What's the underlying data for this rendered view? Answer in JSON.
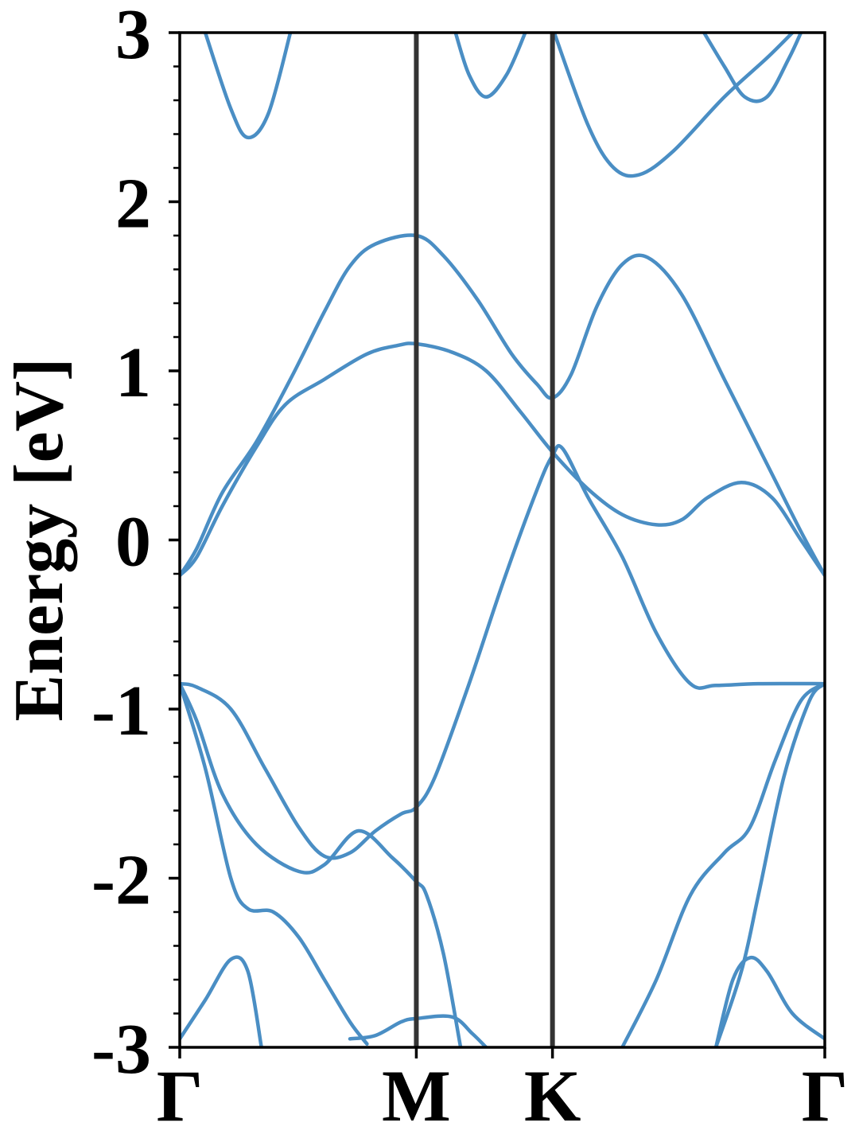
{
  "chart_data": {
    "type": "line",
    "ylabel": "Energy [eV]",
    "xlabel": "",
    "ylim": [
      -3,
      3
    ],
    "yticks": [
      3,
      2,
      1,
      0,
      -1,
      -2,
      -3
    ],
    "yminor_step": 0.2,
    "xlim": [
      0,
      3.79
    ],
    "kpath": [
      {
        "label": "Γ",
        "x": 0
      },
      {
        "label": "M",
        "x": 1.39
      },
      {
        "label": "K",
        "x": 2.19
      },
      {
        "label": "Γ",
        "x": 3.79
      }
    ],
    "grid": false,
    "colors": {
      "band": "#4a8ec4",
      "kline": "#333333",
      "axis": "#000000"
    },
    "series": [
      {
        "values": [
          [
            0,
            -0.21
          ],
          [
            0.1,
            -0.1
          ],
          [
            0.25,
            0.2
          ],
          [
            0.45,
            0.55
          ],
          [
            0.62,
            0.8
          ],
          [
            0.85,
            0.95
          ],
          [
            1.1,
            1.1
          ],
          [
            1.28,
            1.15
          ],
          [
            1.39,
            1.16
          ],
          [
            1.6,
            1.11
          ],
          [
            1.8,
            1.0
          ],
          [
            2.0,
            0.76
          ],
          [
            2.19,
            0.52
          ],
          [
            2.4,
            0.3
          ],
          [
            2.6,
            0.15
          ],
          [
            2.8,
            0.09
          ],
          [
            2.95,
            0.12
          ],
          [
            3.1,
            0.25
          ],
          [
            3.3,
            0.34
          ],
          [
            3.48,
            0.25
          ],
          [
            3.65,
            0.0
          ],
          [
            3.79,
            -0.21
          ]
        ]
      },
      {
        "values": [
          [
            0,
            -0.21
          ],
          [
            0.1,
            -0.05
          ],
          [
            0.25,
            0.28
          ],
          [
            0.45,
            0.58
          ],
          [
            0.65,
            0.95
          ],
          [
            0.85,
            1.35
          ],
          [
            1.0,
            1.62
          ],
          [
            1.15,
            1.75
          ],
          [
            1.39,
            1.8
          ],
          [
            1.55,
            1.68
          ],
          [
            1.75,
            1.42
          ],
          [
            1.95,
            1.1
          ],
          [
            2.1,
            0.92
          ],
          [
            2.19,
            0.84
          ],
          [
            2.3,
            0.98
          ],
          [
            2.45,
            1.38
          ],
          [
            2.6,
            1.63
          ],
          [
            2.75,
            1.67
          ],
          [
            2.95,
            1.45
          ],
          [
            3.2,
            0.95
          ],
          [
            3.45,
            0.45
          ],
          [
            3.65,
            0.05
          ],
          [
            3.79,
            -0.21
          ]
        ]
      },
      {
        "values": [
          [
            0,
            -0.85
          ],
          [
            0.1,
            -0.87
          ],
          [
            0.3,
            -1.0
          ],
          [
            0.5,
            -1.35
          ],
          [
            0.7,
            -1.7
          ],
          [
            0.85,
            -1.87
          ],
          [
            1.0,
            -1.85
          ],
          [
            1.15,
            -1.72
          ],
          [
            1.3,
            -1.62
          ],
          [
            1.39,
            -1.58
          ],
          [
            1.5,
            -1.4
          ],
          [
            1.7,
            -0.85
          ],
          [
            1.9,
            -0.25
          ],
          [
            2.1,
            0.3
          ],
          [
            2.19,
            0.5
          ],
          [
            2.25,
            0.54
          ],
          [
            2.4,
            0.25
          ],
          [
            2.6,
            -0.1
          ],
          [
            2.8,
            -0.55
          ],
          [
            3.0,
            -0.85
          ],
          [
            3.15,
            -0.86
          ],
          [
            3.4,
            -0.85
          ],
          [
            3.79,
            -0.85
          ]
        ]
      },
      {
        "values": [
          [
            0,
            -0.85
          ],
          [
            0.1,
            -1.07
          ],
          [
            0.25,
            -1.5
          ],
          [
            0.45,
            -1.8
          ],
          [
            0.7,
            -1.96
          ],
          [
            0.85,
            -1.92
          ],
          [
            1.05,
            -1.72
          ],
          [
            1.25,
            -1.88
          ],
          [
            1.39,
            -2.02
          ],
          [
            1.45,
            -2.1
          ],
          [
            1.55,
            -2.45
          ],
          [
            1.65,
            -3.0
          ]
        ]
      },
      {
        "values": [
          [
            0,
            -0.85
          ],
          [
            0.15,
            -1.35
          ],
          [
            0.3,
            -2.0
          ],
          [
            0.4,
            -2.18
          ],
          [
            0.55,
            -2.2
          ],
          [
            0.7,
            -2.35
          ],
          [
            0.85,
            -2.6
          ],
          [
            1.0,
            -2.85
          ],
          [
            1.1,
            -2.98
          ]
        ]
      },
      {
        "values": [
          [
            0,
            -2.95
          ],
          [
            0.15,
            -2.72
          ],
          [
            0.3,
            -2.48
          ],
          [
            0.4,
            -2.55
          ],
          [
            0.48,
            -3.0
          ]
        ]
      },
      {
        "values": [
          [
            1.0,
            -2.95
          ],
          [
            1.15,
            -2.93
          ],
          [
            1.3,
            -2.85
          ],
          [
            1.39,
            -2.83
          ],
          [
            1.6,
            -2.82
          ],
          [
            1.72,
            -2.92
          ],
          [
            1.8,
            -3.0
          ]
        ]
      },
      {
        "values": [
          [
            2.6,
            -3.0
          ],
          [
            2.8,
            -2.6
          ],
          [
            3.0,
            -2.1
          ],
          [
            3.2,
            -1.85
          ],
          [
            3.35,
            -1.7
          ],
          [
            3.5,
            -1.3
          ],
          [
            3.65,
            -0.95
          ],
          [
            3.79,
            -0.85
          ]
        ]
      },
      {
        "values": [
          [
            3.15,
            -3.0
          ],
          [
            3.3,
            -2.55
          ],
          [
            3.4,
            -2.1
          ],
          [
            3.55,
            -1.4
          ],
          [
            3.7,
            -0.95
          ],
          [
            3.79,
            -0.85
          ]
        ]
      },
      {
        "values": [
          [
            3.15,
            -3.0
          ],
          [
            3.25,
            -2.6
          ],
          [
            3.35,
            -2.47
          ],
          [
            3.45,
            -2.55
          ],
          [
            3.6,
            -2.8
          ],
          [
            3.79,
            -2.95
          ]
        ]
      },
      {
        "values": [
          [
            0.15,
            3.0
          ],
          [
            0.3,
            2.55
          ],
          [
            0.4,
            2.38
          ],
          [
            0.52,
            2.52
          ],
          [
            0.65,
            3.0
          ]
        ]
      },
      {
        "values": [
          [
            1.62,
            3.0
          ],
          [
            1.7,
            2.75
          ],
          [
            1.8,
            2.62
          ],
          [
            1.92,
            2.75
          ],
          [
            2.03,
            3.0
          ]
        ]
      },
      {
        "values": [
          [
            2.2,
            3.0
          ],
          [
            2.4,
            2.45
          ],
          [
            2.55,
            2.2
          ],
          [
            2.7,
            2.16
          ],
          [
            2.9,
            2.3
          ],
          [
            3.2,
            2.62
          ],
          [
            3.45,
            2.85
          ],
          [
            3.6,
            3.0
          ]
        ]
      },
      {
        "values": [
          [
            3.08,
            3.0
          ],
          [
            3.2,
            2.8
          ],
          [
            3.32,
            2.62
          ],
          [
            3.45,
            2.62
          ],
          [
            3.58,
            2.85
          ],
          [
            3.65,
            3.0
          ]
        ]
      }
    ]
  }
}
